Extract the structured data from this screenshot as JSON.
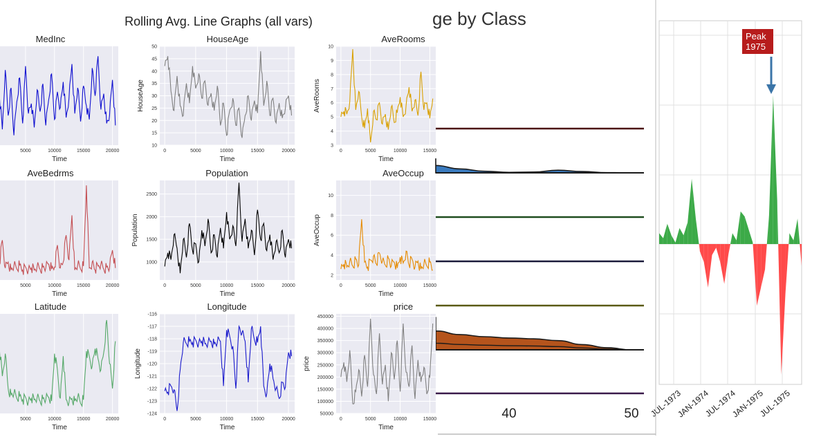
{
  "header": {
    "rolling_title": "Rolling Avg. Line Graphs (all vars)",
    "ridge_title": "ge by Class",
    "peak_label_line1": "Peak",
    "peak_label_line2": "1975"
  },
  "colors": {
    "panel_bg": "#eaeaf2",
    "grid": "#ffffff",
    "ridge_blue": "#3a7bbf",
    "ridge_brown": "#b5541c",
    "positive": "#3caa48",
    "negative": "#ff4a4a",
    "peak_box": "#b71c1c",
    "arrow": "#3b75a8"
  },
  "chart_data": [
    {
      "type": "line",
      "panel": "MedInc",
      "title": "MedInc",
      "xlabel": "Time",
      "ylabel": "",
      "xticks": [
        "5000",
        "10000",
        "15000",
        "20000"
      ],
      "xlim": [
        0,
        21000
      ],
      "ylim": [
        2,
        7
      ],
      "color": "#1010d0",
      "series": [
        {
          "x": [
            0,
            500,
            1000,
            1500,
            2000,
            2500,
            3000,
            3500,
            4000,
            4500,
            5000,
            5500,
            6000,
            6500,
            7000,
            7500,
            8000,
            8500,
            9000,
            9500,
            10000,
            10500,
            11000,
            11500,
            12000,
            12500,
            13000,
            13500,
            14000,
            14500,
            15000,
            15500,
            16000,
            16500,
            17000,
            17500,
            18000,
            18500,
            19000,
            19500,
            20000,
            20500
          ],
          "y": [
            3.2,
            4.5,
            2.8,
            5.8,
            3.5,
            4.9,
            2.5,
            4.2,
            5.4,
            3.1,
            6.0,
            3.6,
            4.1,
            2.9,
            4.8,
            3.7,
            5.1,
            3.0,
            4.3,
            5.6,
            3.3,
            4.7,
            3.9,
            5.2,
            3.4,
            4.4,
            6.1,
            3.6,
            4.9,
            3.2,
            5.0,
            4.0,
            3.3,
            5.9,
            4.5,
            6.5,
            3.8,
            4.6,
            3.1,
            3.5,
            5.3,
            3.0
          ]
        }
      ]
    },
    {
      "type": "line",
      "panel": "HouseAge",
      "title": "HouseAge",
      "xlabel": "Time",
      "ylabel": "HouseAge",
      "xticks": [
        "0",
        "5000",
        "10000",
        "15000",
        "20000"
      ],
      "yticks": [
        "10",
        "15",
        "20",
        "25",
        "30",
        "35",
        "40",
        "45",
        "50"
      ],
      "xlim": [
        -800,
        21000
      ],
      "ylim": [
        10,
        50
      ],
      "color": "#808080",
      "series": [
        {
          "x": [
            0,
            500,
            1000,
            1500,
            2000,
            2500,
            3000,
            3500,
            4000,
            4500,
            5000,
            5500,
            6000,
            6500,
            7000,
            7500,
            8000,
            8500,
            9000,
            9500,
            10000,
            10500,
            11000,
            11500,
            12000,
            12500,
            13000,
            13500,
            14000,
            14500,
            15000,
            15500,
            16000,
            16500,
            17000,
            17500,
            18000,
            18500,
            19000,
            19500,
            20000,
            20500
          ],
          "y": [
            42,
            46,
            32,
            24,
            38,
            26,
            22,
            35,
            27,
            42,
            33,
            39,
            29,
            36,
            26,
            31,
            24,
            34,
            18,
            27,
            14,
            24,
            29,
            18,
            25,
            13,
            22,
            30,
            20,
            28,
            23,
            48,
            26,
            36,
            22,
            29,
            19,
            27,
            21,
            25,
            30,
            22
          ]
        }
      ]
    },
    {
      "type": "line",
      "panel": "AveRooms",
      "title": "AveRooms",
      "xlabel": "Time",
      "ylabel": "AveRooms",
      "xticks": [
        "0",
        "5000",
        "10000",
        "15000"
      ],
      "yticks": [
        "3",
        "4",
        "5",
        "6",
        "7",
        "8",
        "9",
        "10"
      ],
      "xlim": [
        -800,
        16000
      ],
      "ylim": [
        3,
        10
      ],
      "color": "#d9a000",
      "series": [
        {
          "x": [
            0,
            500,
            1000,
            1500,
            2000,
            2500,
            3000,
            3500,
            4000,
            4500,
            5000,
            5500,
            6000,
            6500,
            7000,
            7500,
            8000,
            8500,
            9000,
            9500,
            10000,
            10500,
            11000,
            11500,
            12000,
            12500,
            13000,
            13500,
            14000,
            14500,
            15000,
            15500
          ],
          "y": [
            5.0,
            5.4,
            5.2,
            6.1,
            9.8,
            5.5,
            6.8,
            5.0,
            4.2,
            5.6,
            3.2,
            5.4,
            4.8,
            6.0,
            4.5,
            5.2,
            4.1,
            5.7,
            4.6,
            5.3,
            6.4,
            5.0,
            5.8,
            7.1,
            5.4,
            6.2,
            5.1,
            8.2,
            5.5,
            6.0,
            4.9,
            6.3
          ]
        }
      ]
    },
    {
      "type": "line",
      "panel": "AveBedrms",
      "title": "AveBedrms",
      "xlabel": "Time",
      "ylabel": "",
      "xticks": [
        "5000",
        "10000",
        "15000",
        "20000"
      ],
      "xlim": [
        0,
        21000
      ],
      "ylim": [
        0.9,
        1.9
      ],
      "color": "#c44e52",
      "series": [
        {
          "x": [
            0,
            500,
            1000,
            1500,
            2000,
            2500,
            3000,
            3500,
            4000,
            4500,
            5000,
            5500,
            6000,
            6500,
            7000,
            7500,
            8000,
            8500,
            9000,
            9500,
            10000,
            10500,
            11000,
            11500,
            12000,
            12500,
            13000,
            13500,
            14000,
            14500,
            15000,
            15500,
            16000,
            16500,
            17000,
            17500,
            18000,
            18500,
            19000,
            19500,
            20000,
            20500
          ],
          "y": [
            1.85,
            1.05,
            1.3,
            1.02,
            1.08,
            1.0,
            1.04,
            1.01,
            1.05,
            1.0,
            1.03,
            1.01,
            1.02,
            1.0,
            1.04,
            1.01,
            1.03,
            1.02,
            1.06,
            1.01,
            1.03,
            1.25,
            1.02,
            1.08,
            1.35,
            1.1,
            1.55,
            1.0,
            1.05,
            1.01,
            1.04,
            1.85,
            1.02,
            1.08,
            1.0,
            1.04,
            1.06,
            1.01,
            1.03,
            1.02,
            1.2,
            1.02
          ]
        }
      ]
    },
    {
      "type": "line",
      "panel": "Population",
      "title": "Population",
      "xlabel": "Time",
      "ylabel": "Population",
      "xticks": [
        "0",
        "5000",
        "10000",
        "15000",
        "20000"
      ],
      "yticks": [
        "1000",
        "1500",
        "2000",
        "2500"
      ],
      "xlim": [
        -800,
        21000
      ],
      "ylim": [
        600,
        2800
      ],
      "color": "#000000",
      "series": [
        {
          "x": [
            0,
            500,
            1000,
            1500,
            2000,
            2500,
            3000,
            3500,
            4000,
            4500,
            5000,
            5500,
            6000,
            6500,
            7000,
            7500,
            8000,
            8500,
            9000,
            9500,
            10000,
            10500,
            11000,
            11500,
            12000,
            12500,
            13000,
            13500,
            14000,
            14500,
            15000,
            15500,
            16000,
            16500,
            17000,
            17500,
            18000,
            18500,
            19000,
            19500,
            20000,
            20500
          ],
          "y": [
            900,
            1200,
            1050,
            1600,
            1300,
            750,
            1500,
            1100,
            1850,
            1250,
            1400,
            1000,
            1700,
            1350,
            1950,
            1200,
            1600,
            1100,
            1750,
            1300,
            2100,
            1500,
            1800,
            1350,
            2750,
            1450,
            1950,
            1300,
            1700,
            1150,
            2150,
            1500,
            1850,
            1250,
            1600,
            1050,
            1450,
            1200,
            1700,
            1100,
            1500,
            1300
          ]
        }
      ]
    },
    {
      "type": "line",
      "panel": "AveOccup",
      "title": "AveOccup",
      "xlabel": "Time",
      "ylabel": "AveOccup",
      "xticks": [
        "0",
        "5000",
        "10000",
        "15000"
      ],
      "yticks": [
        "2",
        "4",
        "6",
        "8",
        "10"
      ],
      "xlim": [
        -800,
        16000
      ],
      "ylim": [
        1.5,
        11.5
      ],
      "color": "#e68a00",
      "series": [
        {
          "x": [
            0,
            500,
            1000,
            1500,
            2000,
            2500,
            3000,
            3500,
            4000,
            4500,
            5000,
            5500,
            6000,
            6500,
            7000,
            7500,
            8000,
            8500,
            9000,
            9500,
            10000,
            10500,
            11000,
            11500,
            12000,
            12500,
            13000,
            13500,
            14000,
            14500,
            15000,
            15500
          ],
          "y": [
            2.6,
            3.1,
            2.8,
            3.4,
            2.9,
            3.6,
            3.0,
            7.6,
            3.3,
            2.8,
            3.5,
            3.9,
            3.1,
            4.2,
            3.4,
            3.0,
            3.7,
            2.9,
            3.3,
            2.7,
            3.8,
            3.2,
            4.4,
            3.0,
            3.6,
            2.8,
            3.4,
            2.6,
            3.1,
            2.9,
            3.3,
            2.5
          ]
        }
      ]
    },
    {
      "type": "line",
      "panel": "Latitude",
      "title": "Latitude",
      "xlabel": "Time",
      "ylabel": "",
      "xticks": [
        "5000",
        "10000",
        "15000",
        "20000"
      ],
      "xlim": [
        0,
        21000
      ],
      "ylim": [
        33,
        41
      ],
      "color": "#55a868",
      "series": [
        {
          "x": [
            0,
            500,
            1000,
            1500,
            2000,
            2500,
            3000,
            3500,
            4000,
            4500,
            5000,
            5500,
            6000,
            6500,
            7000,
            7500,
            8000,
            8500,
            9000,
            9500,
            10000,
            10500,
            11000,
            11500,
            12000,
            12500,
            13000,
            13500,
            14000,
            14500,
            15000,
            15500,
            16000,
            16500,
            17000,
            17500,
            18000,
            18500,
            19000,
            19500,
            20000,
            20500
          ],
          "y": [
            37.5,
            38.2,
            36.0,
            37.8,
            35.0,
            34.5,
            34.6,
            34.2,
            34.4,
            34.1,
            34.3,
            34.0,
            34.2,
            34.1,
            34.3,
            34.0,
            34.2,
            34.1,
            34.3,
            34.0,
            37.8,
            36.5,
            34.2,
            37.6,
            34.1,
            33.9,
            34.2,
            34.0,
            34.3,
            33.8,
            34.1,
            38.0,
            37.6,
            36.8,
            38.2,
            37.4,
            36.5,
            37.9,
            40.5,
            37.0,
            35.0,
            38.8
          ]
        }
      ]
    },
    {
      "type": "line",
      "panel": "Longitude",
      "title": "Longitude",
      "xlabel": "Time",
      "ylabel": "Longitude",
      "xticks": [
        "0",
        "5000",
        "10000",
        "15000",
        "20000"
      ],
      "yticks": [
        "-124",
        "-123",
        "-122",
        "-121",
        "-120",
        "-119",
        "-118",
        "-117",
        "-116"
      ],
      "xlim": [
        -800,
        21000
      ],
      "ylim": [
        -124,
        -116
      ],
      "color": "#1a1acc",
      "series": [
        {
          "x": [
            0,
            500,
            1000,
            1500,
            2000,
            2500,
            3000,
            3500,
            4000,
            4500,
            5000,
            5500,
            6000,
            6500,
            7000,
            7500,
            8000,
            8500,
            9000,
            9500,
            10000,
            10500,
            11000,
            11500,
            12000,
            12500,
            13000,
            13500,
            14000,
            14500,
            15000,
            15500,
            16000,
            16500,
            17000,
            17500,
            18000,
            18500,
            19000,
            19500,
            20000,
            20500
          ],
          "y": [
            -122.2,
            -122.3,
            -121.8,
            -122.1,
            -123.8,
            -120.5,
            -118.3,
            -118.4,
            -118.2,
            -118.3,
            -118.1,
            -118.3,
            -118.2,
            -118.4,
            -118.3,
            -118.2,
            -118.4,
            -118.3,
            -118.2,
            -121.8,
            -117.3,
            -117.8,
            -118.6,
            -122.0,
            -117.0,
            -117.5,
            -118.2,
            -121.5,
            -117.2,
            -118.1,
            -118.3,
            -117.0,
            -121.8,
            -122.4,
            -120.0,
            -121.2,
            -122.0,
            -122.8,
            -121.5,
            -121.9,
            -119.1,
            -119.4
          ]
        }
      ]
    },
    {
      "type": "line",
      "panel": "price",
      "title": "price",
      "xlabel": "Time",
      "ylabel": "price",
      "xticks": [
        "0",
        "5000",
        "10000",
        "15000"
      ],
      "yticks": [
        "50000",
        "100000",
        "150000",
        "200000",
        "250000",
        "300000",
        "350000",
        "400000",
        "450000"
      ],
      "xlim": [
        -800,
        16000
      ],
      "ylim": [
        50000,
        460000
      ],
      "color": "#808080",
      "series": [
        {
          "x": [
            0,
            500,
            1000,
            1500,
            2000,
            2500,
            3000,
            3500,
            4000,
            4500,
            5000,
            5500,
            6000,
            6500,
            7000,
            7500,
            8000,
            8500,
            9000,
            9500,
            10000,
            10500,
            11000,
            11500,
            12000,
            12500,
            13000,
            13500,
            14000,
            14500,
            15000,
            15500
          ],
          "y": [
            200000,
            260000,
            180000,
            310000,
            90000,
            140000,
            230000,
            120000,
            290000,
            160000,
            440000,
            210000,
            130000,
            380000,
            170000,
            250000,
            100000,
            300000,
            190000,
            350000,
            140000,
            420000,
            220000,
            160000,
            330000,
            110000,
            270000,
            180000,
            240000,
            130000,
            200000,
            420000
          ]
        }
      ]
    },
    {
      "type": "area",
      "panel": "ridge",
      "title": "ge by Class",
      "xticks": [
        "40",
        "50"
      ],
      "xlim": [
        30,
        51
      ],
      "series": [
        {
          "x": [
            30,
            32,
            34,
            36,
            38,
            40,
            42,
            44,
            46,
            48,
            50
          ],
          "y": [
            0.55,
            0.4,
            0.28,
            0.15,
            0.06,
            0.02,
            0.03,
            0.1,
            0.05,
            0.01,
            0.0
          ],
          "color": "#3a7bbf"
        },
        {
          "x": [
            30,
            32,
            34,
            36,
            38,
            40,
            42,
            44,
            46,
            48,
            50
          ],
          "y": [
            1.25,
            0.95,
            0.72,
            0.58,
            0.5,
            0.45,
            0.42,
            0.35,
            0.2,
            0.08,
            0.0
          ],
          "color": "#b5541c"
        }
      ]
    },
    {
      "type": "area",
      "panel": "diverging",
      "title": "",
      "xticks": [
        "JUL-1973",
        "JAN-1974",
        "JUL-1974",
        "JAN-1975",
        "JUL-1975"
      ],
      "values": [
        0.15,
        0.08,
        0.28,
        0.12,
        0.02,
        0.22,
        0.12,
        0.3,
        0.9,
        0.35,
        -0.1,
        -0.25,
        -0.6,
        -0.15,
        -0.05,
        -0.25,
        -0.55,
        -0.15,
        0.15,
        0.05,
        0.45,
        0.38,
        0.2,
        0.02,
        -0.85,
        -0.6,
        -0.35,
        0.4,
        2.05,
        0.6,
        -1.8,
        -0.7,
        0.15,
        0.05,
        0.35,
        -0.3
      ]
    }
  ]
}
